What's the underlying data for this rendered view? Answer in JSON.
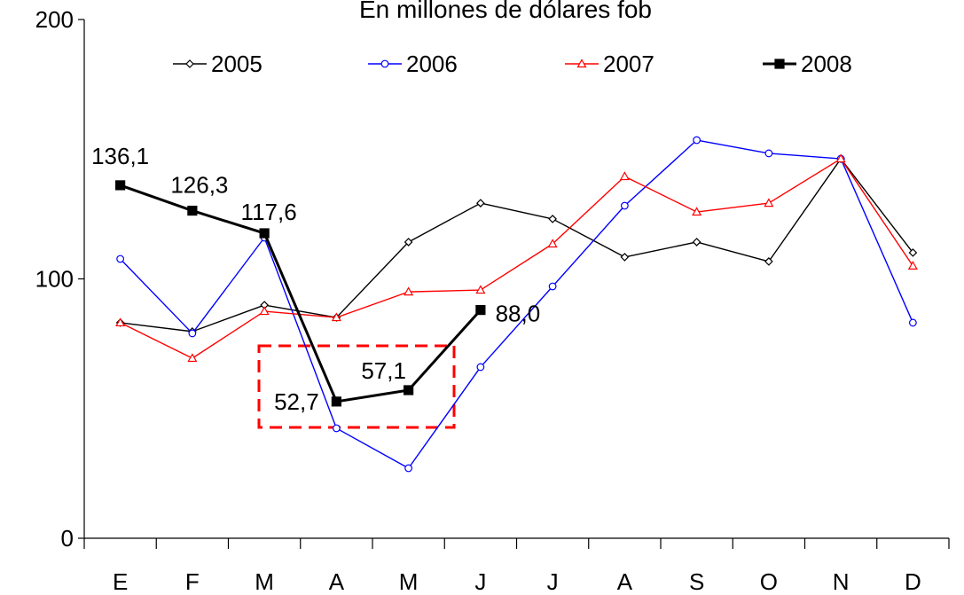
{
  "chart_data": {
    "type": "line",
    "title": "En millones de dólares fob",
    "categories": [
      "E",
      "F",
      "M",
      "A",
      "M",
      "J",
      "J",
      "A",
      "S",
      "O",
      "N",
      "D"
    ],
    "ylim": [
      0,
      200
    ],
    "yticks": [
      0,
      100,
      200
    ],
    "series": [
      {
        "name": "2005",
        "color": "#000000",
        "marker": "diamond",
        "values": [
          83.1,
          79.7,
          89.9,
          85.1,
          114.2,
          129.2,
          123.1,
          108.4,
          114.2,
          106.7,
          146.3,
          110.1
        ]
      },
      {
        "name": "2006",
        "color": "#0000ff",
        "marker": "circle",
        "values": [
          107.7,
          79.0,
          115.9,
          42.4,
          27.0,
          66.0,
          97.1,
          128.2,
          153.5,
          148.4,
          146.3,
          83.1
        ]
      },
      {
        "name": "2007",
        "color": "#ff0000",
        "marker": "triangle",
        "values": [
          83.1,
          69.4,
          87.5,
          85.1,
          95.0,
          95.7,
          113.5,
          139.5,
          125.8,
          129.2,
          146.3,
          105.0
        ]
      },
      {
        "name": "2008",
        "color": "#000000",
        "marker": "square",
        "values": [
          136.1,
          126.3,
          117.6,
          52.7,
          57.1,
          88.0,
          null,
          null,
          null,
          null,
          null,
          null
        ],
        "value_labels": [
          "136,1",
          "126,3",
          "117,6",
          "52,7",
          "57,1",
          "88,0",
          null,
          null,
          null,
          null,
          null,
          null
        ]
      }
    ]
  }
}
